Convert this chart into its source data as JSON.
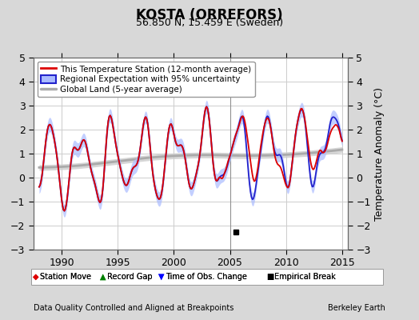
{
  "title": "KOSTA (ORREFORS)",
  "subtitle": "56.850 N, 15.459 E (Sweden)",
  "xlabel_left": "Data Quality Controlled and Aligned at Breakpoints",
  "xlabel_right": "Berkeley Earth",
  "ylabel": "Temperature Anomaly (°C)",
  "xlim": [
    1987.5,
    2015.5
  ],
  "ylim": [
    -3,
    5
  ],
  "yticks": [
    -3,
    -2,
    -1,
    0,
    1,
    2,
    3,
    4,
    5
  ],
  "xticks": [
    1990,
    1995,
    2000,
    2005,
    2010,
    2015
  ],
  "legend_entries": [
    "This Temperature Station (12-month average)",
    "Regional Expectation with 95% uncertainty",
    "Global Land (5-year average)"
  ],
  "empirical_break_x": 2005.5,
  "empirical_break_y": -2.25,
  "background_color": "#d8d8d8",
  "plot_bg_color": "#ffffff",
  "grid_color": "#cccccc",
  "station_color": "#dd0000",
  "regional_color": "#2222cc",
  "regional_fill_color": "#aabbff",
  "global_color": "#aaaaaa",
  "global_fill_color": "#cccccc"
}
